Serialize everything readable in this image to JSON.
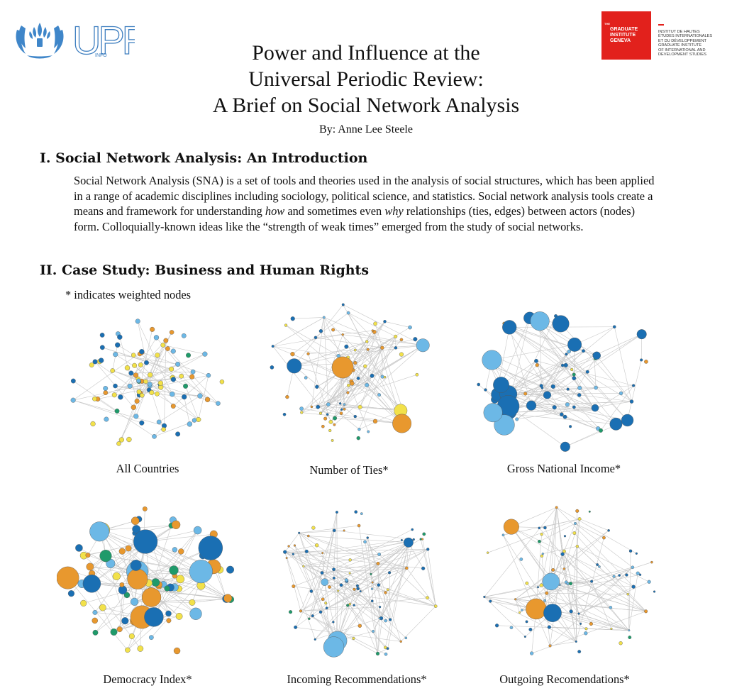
{
  "header": {
    "un_logo_icon": "un-wreath-flame-icon",
    "upr_logo_text": "UPR",
    "upr_logo_subtext": "INFO",
    "institute_logo_lines": [
      "THE",
      "GRADUATE",
      "INSTITUTE",
      "GENEVA"
    ],
    "institute_name_lines": [
      "INSTITUT DE HAUTES",
      "ÉTUDES INTERNATIONALES",
      "ET DU DÉVELOPPEMENT",
      "GRADUATE INSTITUTE",
      "OF INTERNATIONAL AND",
      "DEVELOPMENT STUDIES"
    ]
  },
  "title_lines": [
    "Power and Influence at the",
    "Universal Periodic Review:",
    "A Brief on Social Network Analysis"
  ],
  "author": "By: Anne Lee Steele",
  "section1": {
    "heading": "I. Social Network Analysis: An Introduction",
    "para_a": "Social Network Analysis (SNA) is a set of tools and theories used in the analysis of social structures, which has been applied in a range of academic disciplines including sociology, political science, and statistics. Social network analysis tools create a means and framework for understanding ",
    "para_em1": "how",
    "para_b": " and sometimes even ",
    "para_em2": "why",
    "para_c": " relationships (ties, edges) between actors (nodes) form. Colloquially-known ideas like the “strength of weak times” emerged from the study of social networks."
  },
  "section2": {
    "heading": "II. Case Study: Business and Human Rights",
    "note": "* indicates weighted nodes"
  },
  "networks": [
    {
      "caption": "All Countries"
    },
    {
      "caption": "Number of Ties*"
    },
    {
      "caption": "Gross National Income*"
    },
    {
      "caption": "Democracy Index*"
    },
    {
      "caption": "Incoming Recommendations*"
    },
    {
      "caption": "Outgoing Recomendations*"
    }
  ],
  "colors": {
    "dark_blue": "#1a6fb3",
    "light_blue": "#6cb8e6",
    "orange": "#e8982e",
    "yellow": "#f2e14a",
    "green": "#1f9a6a",
    "edge": "#c8c8c8",
    "institute_red": "#e2211c",
    "un_blue": "#3f86c9"
  }
}
